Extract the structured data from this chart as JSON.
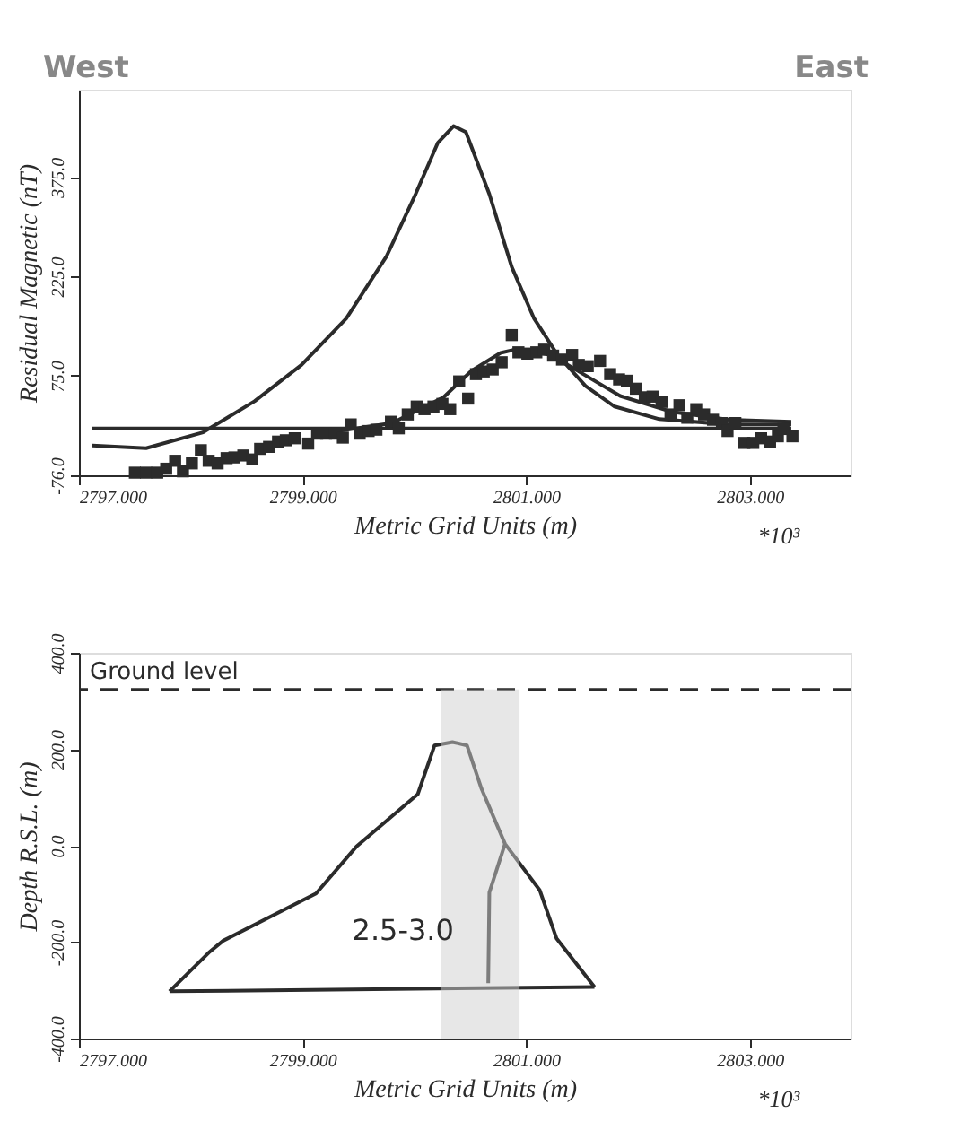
{
  "chart_data": [
    {
      "type": "line",
      "xlabel": "Metric Grid Units (m)",
      "ylabel": "Residual Magnetic (nT)",
      "annotations": [
        "West",
        "East",
        "*10³"
      ],
      "xlim": [
        2797,
        2803.9
      ],
      "xticks": [
        {
          "value": 2797,
          "label": "2797.000"
        },
        {
          "value": 2799,
          "label": "2799.000"
        },
        {
          "value": 2801,
          "label": "2801.000"
        },
        {
          "value": 2803,
          "label": "2803.000"
        }
      ],
      "ylim": [
        -76,
        507
      ],
      "yticks": [
        {
          "value": -76,
          "label": "-76.0"
        },
        {
          "value": 75,
          "label": "75.0"
        },
        {
          "value": 225,
          "label": "225.0"
        },
        {
          "value": 375,
          "label": "375.0"
        }
      ],
      "grid": false,
      "series": [
        {
          "color": "#2b2b2b",
          "x": [
            2797.12,
            2797.6,
            2798.11,
            2798.57,
            2798.99,
            2799.39,
            2799.75,
            2800.01,
            2800.21,
            2800.35,
            2800.46,
            2800.67,
            2800.87,
            2801.07,
            2801.28,
            2801.53,
            2801.79,
            2802.19,
            2802.81,
            2803.37
          ],
          "values": [
            -31,
            -35,
            -11,
            36,
            91,
            161,
            255,
            349,
            427,
            452,
            443,
            349,
            239,
            161,
            106,
            59,
            28,
            9,
            1,
            1
          ]
        },
        {
          "color": "#2b2b2b",
          "x": [
            2799.08,
            2799.8,
            2800.26,
            2800.51,
            2800.77,
            2800.92,
            2801.22,
            2801.53,
            2801.84,
            2802.3,
            2802.81,
            2803.37
          ],
          "values": [
            -15,
            3,
            42,
            82,
            109,
            115,
            106,
            75,
            44,
            20,
            8,
            5
          ]
        },
        {
          "color": "#2b2b2b",
          "x": [
            2797.12,
            2803.37
          ],
          "values": [
            -5,
            -5
          ]
        },
        {
          "type": "scatter",
          "marker": "square",
          "color": "#2b2b2b",
          "x": [
            2797.5,
            2797.6,
            2797.7,
            2797.78,
            2797.86,
            2797.93,
            2798.01,
            2798.09,
            2798.16,
            2798.24,
            2798.32,
            2798.39,
            2798.47,
            2798.55,
            2798.62,
            2798.7,
            2798.78,
            2798.85,
            2798.93,
            2799.05,
            2799.13,
            2799.21,
            2799.29,
            2799.36,
            2799.43,
            2799.51,
            2799.59,
            2799.66,
            2799.79,
            2799.86,
            2799.94,
            2800.02,
            2800.09,
            2800.17,
            2800.25,
            2800.32,
            2800.4,
            2800.48,
            2800.55,
            2800.62,
            2800.7,
            2800.78,
            2800.87,
            2800.93,
            2801.01,
            2801.09,
            2801.16,
            2801.24,
            2801.32,
            2801.41,
            2801.47,
            2801.55,
            2801.66,
            2801.75,
            2801.83,
            2801.9,
            2801.98,
            2802.06,
            2802.13,
            2802.21,
            2802.29,
            2802.37,
            2802.44,
            2802.52,
            2802.59,
            2802.67,
            2802.75,
            2802.8,
            2802.87,
            2802.95,
            2803.03,
            2803.1,
            2803.18,
            2803.25,
            2803.3,
            2803.38
          ],
          "values": [
            -72,
            -72,
            -72,
            -66,
            -54,
            -70,
            -58,
            -38,
            -54,
            -58,
            -50,
            -49,
            -46,
            -52,
            -36,
            -33,
            -25,
            -23,
            -20,
            -28,
            -13,
            -13,
            -13,
            -19,
            1,
            -13,
            -9,
            -7,
            5,
            -5,
            16,
            28,
            24,
            28,
            32,
            24,
            66,
            40,
            77,
            81,
            84,
            95,
            136,
            110,
            108,
            110,
            114,
            105,
            99,
            106,
            91,
            89,
            97,
            77,
            69,
            67,
            55,
            42,
            43,
            35,
            16,
            30,
            11,
            24,
            16,
            8,
            3,
            -9,
            3,
            -27,
            -27,
            -20,
            -25,
            -17,
            -6,
            -17
          ]
        }
      ]
    },
    {
      "type": "line",
      "xlabel": "Metric Grid Units (m)",
      "ylabel": "Depth R.S.L. (m)",
      "annotations": [
        "*10³",
        "2.5-3.0"
      ],
      "xlim": [
        2797,
        2803.9
      ],
      "xticks": [
        {
          "value": 2797,
          "label": "2797.000"
        },
        {
          "value": 2799,
          "label": "2799.000"
        },
        {
          "value": 2801,
          "label": "2801.000"
        },
        {
          "value": 2803,
          "label": "2803.000"
        }
      ],
      "ylim": [
        -400,
        400
      ],
      "yticks": [
        {
          "value": -400,
          "label": "-400.0"
        },
        {
          "value": -200,
          "label": "-200.0"
        },
        {
          "value": 0,
          "label": "0.0"
        },
        {
          "value": 200,
          "label": "200.0"
        },
        {
          "value": 400,
          "label": "400.0"
        }
      ],
      "grid": false,
      "ref_lines": [
        {
          "axis": "y",
          "value": 324,
          "label": "Ground level",
          "line_style": "dashed",
          "color": "#2b2b2b"
        }
      ],
      "bands": [
        {
          "axis": "x",
          "from": 2800.24,
          "to": 2800.94,
          "color": "#cfcfcf"
        }
      ],
      "series": [
        {
          "color": "#2b2b2b",
          "x": [
            2797.81,
            2798.16,
            2798.29,
            2799.12,
            2799.48,
            2800.03,
            2800.18,
            2800.34,
            2800.47,
            2800.6,
            2800.81,
            2801.12,
            2801.27,
            2801.61
          ],
          "values": [
            -302,
            -222,
            -197,
            -99,
            -2,
            107,
            208,
            215,
            208,
            118,
            4,
            -92,
            -192,
            -293
          ]
        },
        {
          "color": "#2b2b2b",
          "x": [
            2797.81,
            2801.61
          ],
          "values": [
            -302,
            -293
          ]
        },
        {
          "color": "#2b2b2b",
          "x": [
            2800.66,
            2800.67,
            2800.81
          ],
          "values": [
            -285,
            -97,
            4
          ]
        }
      ]
    }
  ]
}
